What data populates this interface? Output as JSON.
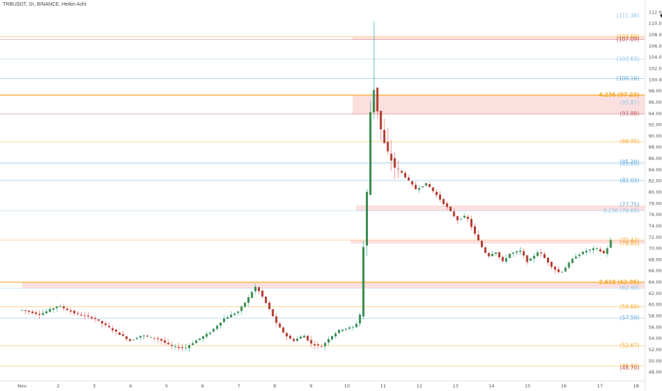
{
  "title": "TRBUSDT, 1h, BINANCE, Heikin Ashi",
  "colors": {
    "up": "#26a69a",
    "down": "#ef5350",
    "up_body": "#3a8a4e",
    "down_body": "#b03a2e",
    "zone": "rgba(239,83,80,0.18)",
    "orange": "#f6a623",
    "blue": "#5ba3d9",
    "lightblue": "#8fc6ea",
    "dark_red": "#c05560"
  },
  "chart_data": {
    "type": "candlestick",
    "style": "Heikin Ashi",
    "x_ticks": [
      "Nov",
      "2",
      "3",
      "4",
      "5",
      "6",
      "7",
      "8",
      "9",
      "10",
      "11",
      "12",
      "13",
      "14",
      "15",
      "16",
      "17",
      "18"
    ],
    "x_range": [
      0,
      17.65
    ],
    "y_range": [
      47,
      113
    ],
    "y_ticks": [
      48,
      50,
      52,
      54,
      56,
      58,
      60,
      62,
      64,
      66,
      68,
      70,
      72,
      74,
      76,
      78,
      80,
      82,
      84,
      86,
      88,
      90,
      92,
      94,
      96,
      98,
      100,
      102,
      104,
      106,
      108,
      110,
      112
    ],
    "keypoints": [
      [
        0,
        59.0
      ],
      [
        0.5,
        58.2
      ],
      [
        1.0,
        59.8
      ],
      [
        1.5,
        58.3
      ],
      [
        2.0,
        57.5
      ],
      [
        2.5,
        55.5
      ],
      [
        3.0,
        53.5
      ],
      [
        3.3,
        54.5
      ],
      [
        3.8,
        53.8
      ],
      [
        4.1,
        52.6
      ],
      [
        4.5,
        52.2
      ],
      [
        4.8,
        53.5
      ],
      [
        5.2,
        55.0
      ],
      [
        5.6,
        57.5
      ],
      [
        6.0,
        58.8
      ],
      [
        6.3,
        61.5
      ],
      [
        6.45,
        63.2
      ],
      [
        6.6,
        62.0
      ],
      [
        6.9,
        58.5
      ],
      [
        7.05,
        56.5
      ],
      [
        7.3,
        54.5
      ],
      [
        7.5,
        53.5
      ],
      [
        7.8,
        54.5
      ],
      [
        8.0,
        53.0
      ],
      [
        8.3,
        52.5
      ],
      [
        8.5,
        54.0
      ],
      [
        8.8,
        55.5
      ],
      [
        9.2,
        56.0
      ],
      [
        9.35,
        57.5
      ],
      [
        9.45,
        70.0
      ],
      [
        9.55,
        80.0
      ],
      [
        9.65,
        95.0
      ],
      [
        9.7,
        100.0
      ],
      [
        9.8,
        96.0
      ],
      [
        9.9,
        92.0
      ],
      [
        10.05,
        88.0
      ],
      [
        10.2,
        86.0
      ],
      [
        10.35,
        84.0
      ],
      [
        10.5,
        83.5
      ],
      [
        10.7,
        82.0
      ],
      [
        10.9,
        80.5
      ],
      [
        11.2,
        81.5
      ],
      [
        11.4,
        80.0
      ],
      [
        11.6,
        78.5
      ],
      [
        11.8,
        77.0
      ],
      [
        12.05,
        75.0
      ],
      [
        12.3,
        75.8
      ],
      [
        12.5,
        73.0
      ],
      [
        12.7,
        70.5
      ],
      [
        12.9,
        68.5
      ],
      [
        13.1,
        69.5
      ],
      [
        13.3,
        67.5
      ],
      [
        13.5,
        69.0
      ],
      [
        13.8,
        69.5
      ],
      [
        14.0,
        67.5
      ],
      [
        14.3,
        69.5
      ],
      [
        14.5,
        68.0
      ],
      [
        14.7,
        66.5
      ],
      [
        14.9,
        65.5
      ],
      [
        15.1,
        67.0
      ],
      [
        15.3,
        68.5
      ],
      [
        15.6,
        69.5
      ],
      [
        15.9,
        70.0
      ],
      [
        16.1,
        69.0
      ],
      [
        16.25,
        70.5
      ],
      [
        16.3,
        71.4
      ]
    ],
    "candle_count": 170,
    "levels": [
      {
        "label": "(111.38)",
        "value": 111.38,
        "color": "lightblue",
        "line": false
      },
      {
        "label": "(107.60)",
        "value": 107.6,
        "color": "orange",
        "line": true
      },
      {
        "label": "(107.09)",
        "value": 107.09,
        "color": "dark_red",
        "line": true
      },
      {
        "label": "(103.63)",
        "value": 103.63,
        "color": "lightblue",
        "line": true
      },
      {
        "label": "(100.16)",
        "value": 100.16,
        "color": "blue",
        "line": true
      },
      {
        "label": "4.236 (97.23)",
        "value": 97.23,
        "color": "orange",
        "line": true,
        "bold": true
      },
      {
        "label": "(95.87)",
        "value": 95.87,
        "color": "lightblue",
        "line": false
      },
      {
        "label": "(93.88)",
        "value": 93.88,
        "color": "dark_red",
        "line": true
      },
      {
        "label": "(88.95)",
        "value": 88.95,
        "color": "orange",
        "line": true
      },
      {
        "label": "(85.28)",
        "value": 85.28,
        "color": "blue",
        "line": true
      },
      {
        "label": "(85.00)",
        "value": 85.0,
        "color": "lightblue",
        "line": true
      },
      {
        "label": "(82.03)",
        "value": 82.03,
        "color": "blue",
        "line": true
      },
      {
        "label": "(77.75)",
        "value": 77.75,
        "color": "blue",
        "line": false
      },
      {
        "label": "3.236 (76.66)",
        "value": 76.66,
        "color": "lightblue",
        "line": true
      },
      {
        "label": "(71.42)",
        "value": 71.42,
        "color": "orange",
        "line": true
      },
      {
        "label": "(70.82)",
        "value": 70.82,
        "color": "orange",
        "line": false
      },
      {
        "label": "2.618 (63.95)",
        "value": 63.95,
        "color": "orange",
        "line": true,
        "bold": true
      },
      {
        "label": "(62.90)",
        "value": 62.9,
        "color": "lightblue",
        "line": true
      },
      {
        "label": "(59.60)",
        "value": 59.6,
        "color": "orange",
        "line": true
      },
      {
        "label": "(57.59)",
        "value": 57.59,
        "color": "blue",
        "line": true
      },
      {
        "label": "(52.67)",
        "value": 52.67,
        "color": "orange",
        "line": true
      },
      {
        "label": "(49.03)",
        "value": 49.03,
        "color": "orange",
        "line": true
      },
      {
        "label": "(48.70)",
        "value": 48.7,
        "color": "dark_red",
        "line": false
      }
    ],
    "zones": [
      {
        "x_start": 9.15,
        "top": 107.6,
        "bottom": 107.09
      },
      {
        "x_start": 9.15,
        "top": 97.23,
        "bottom": 93.88
      },
      {
        "x_start": 9.25,
        "top": 77.6,
        "bottom": 76.66
      },
      {
        "x_start": 9.1,
        "top": 71.42,
        "bottom": 70.82
      },
      {
        "x_start": 0,
        "top": 63.95,
        "bottom": 62.9
      }
    ]
  }
}
